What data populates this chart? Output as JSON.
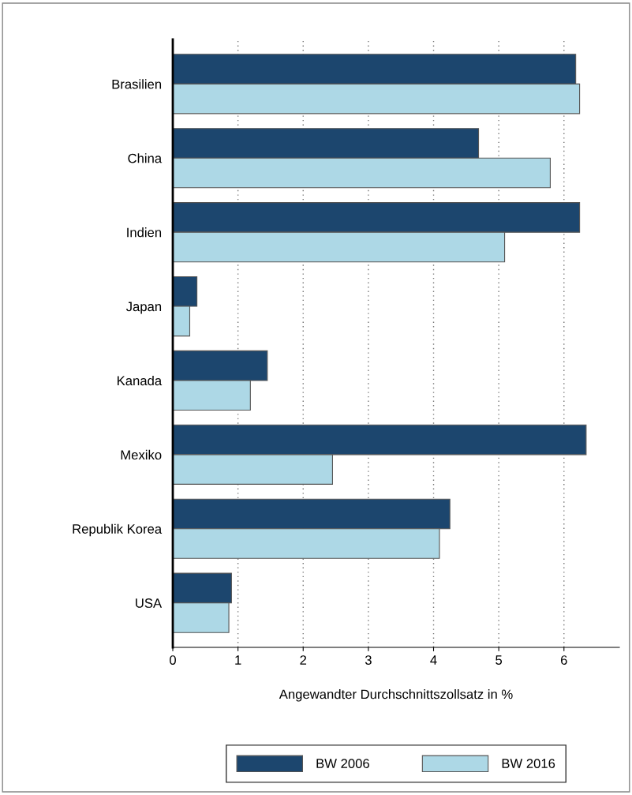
{
  "chart_data": {
    "type": "bar",
    "orientation": "horizontal",
    "xlabel": "Angewandter Durchschnittszollsatz in %",
    "categories": [
      "Brasilien",
      "China",
      "Indien",
      "Japan",
      "Kanada",
      "Mexiko",
      "Republik Korea",
      "USA"
    ],
    "series": [
      {
        "name": "BW 2006",
        "color": "#1c466e",
        "values": [
          6.18,
          4.69,
          6.24,
          0.37,
          1.45,
          6.34,
          4.25,
          0.9
        ]
      },
      {
        "name": "BW 2016",
        "color": "#add8e6",
        "values": [
          6.24,
          5.79,
          5.09,
          0.26,
          1.19,
          2.45,
          4.09,
          0.86
        ]
      }
    ],
    "xlim": [
      0,
      6.85
    ],
    "xticks": [
      0,
      1,
      2,
      3,
      4,
      5,
      6
    ],
    "grid": "x",
    "legend": "bottom"
  }
}
